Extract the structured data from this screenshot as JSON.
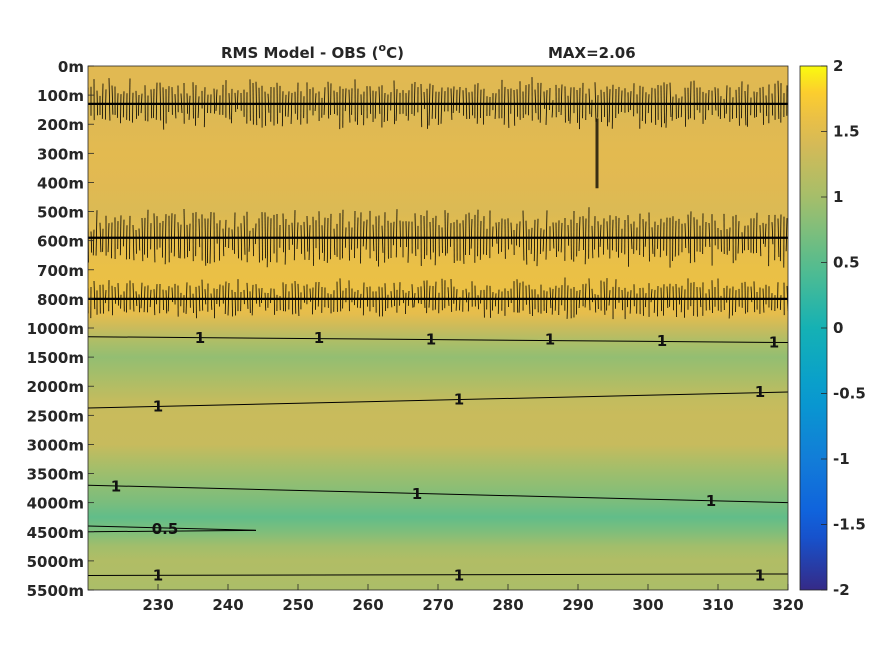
{
  "chart_data": {
    "type": "heatmap",
    "title": "RMS Model - OBS (",
    "title_unit": "C)",
    "title_degree": "o",
    "max_label": "MAX=2.06",
    "xlim": [
      220,
      320
    ],
    "x_ticks": [
      "230",
      "240",
      "250",
      "260",
      "270",
      "280",
      "290",
      "300",
      "310",
      "320"
    ],
    "x_tick_values": [
      230,
      240,
      250,
      260,
      270,
      280,
      290,
      300,
      310,
      320
    ],
    "y_ticks": [
      "0m",
      "100m",
      "200m",
      "300m",
      "400m",
      "500m",
      "600m",
      "700m",
      "800m",
      "1000m",
      "1500m",
      "2000m",
      "2500m",
      "3000m",
      "3500m",
      "4000m",
      "4500m",
      "5000m",
      "5500m"
    ],
    "colorbar": {
      "range": [
        -2,
        2
      ],
      "ticks": [
        "2",
        "1.5",
        "1",
        "0.5",
        "0",
        "-0.5",
        "-1",
        "-1.5",
        "-2"
      ],
      "tick_values": [
        2,
        1.5,
        1,
        0.5,
        0,
        -0.5,
        -1,
        -1.5,
        -2
      ]
    },
    "depth_profile": {
      "depth_index": [
        0,
        0.5,
        1,
        1.5,
        2,
        3,
        4,
        5,
        6,
        7,
        8,
        8.5,
        9,
        9.5,
        10,
        10.5,
        11,
        11.5,
        12,
        13,
        13.5,
        14,
        15,
        15.5,
        16,
        16.5,
        17,
        17.5,
        18
      ],
      "value": [
        1.5,
        1.5,
        1.48,
        1.45,
        1.48,
        1.52,
        1.5,
        1.45,
        1.55,
        1.6,
        1.62,
        1.55,
        1.3,
        1.05,
        0.88,
        0.98,
        1.12,
        1.25,
        1.3,
        1.28,
        1.1,
        0.95,
        0.72,
        0.55,
        0.75,
        0.98,
        1.1,
        1.08,
        1.05
      ]
    },
    "contour_labels": [
      {
        "text": "1",
        "x": 236,
        "depth_index": 9.35
      },
      {
        "text": "1",
        "x": 253,
        "depth_index": 9.35
      },
      {
        "text": "1",
        "x": 269,
        "depth_index": 9.4
      },
      {
        "text": "1",
        "x": 286,
        "depth_index": 9.4
      },
      {
        "text": "1",
        "x": 302,
        "depth_index": 9.45
      },
      {
        "text": "1",
        "x": 318,
        "depth_index": 9.5
      },
      {
        "text": "1",
        "x": 230,
        "depth_index": 11.7
      },
      {
        "text": "1",
        "x": 273,
        "depth_index": 11.45
      },
      {
        "text": "1",
        "x": 316,
        "depth_index": 11.2
      },
      {
        "text": "1",
        "x": 224,
        "depth_index": 14.45
      },
      {
        "text": "1",
        "x": 267,
        "depth_index": 14.7
      },
      {
        "text": "1",
        "x": 309,
        "depth_index": 14.95
      },
      {
        "text": "0.5",
        "x": 231,
        "depth_index": 15.9
      },
      {
        "text": "1",
        "x": 230,
        "depth_index": 17.5
      },
      {
        "text": "1",
        "x": 273,
        "depth_index": 17.5
      },
      {
        "text": "1",
        "x": 316,
        "depth_index": 17.5
      }
    ]
  }
}
